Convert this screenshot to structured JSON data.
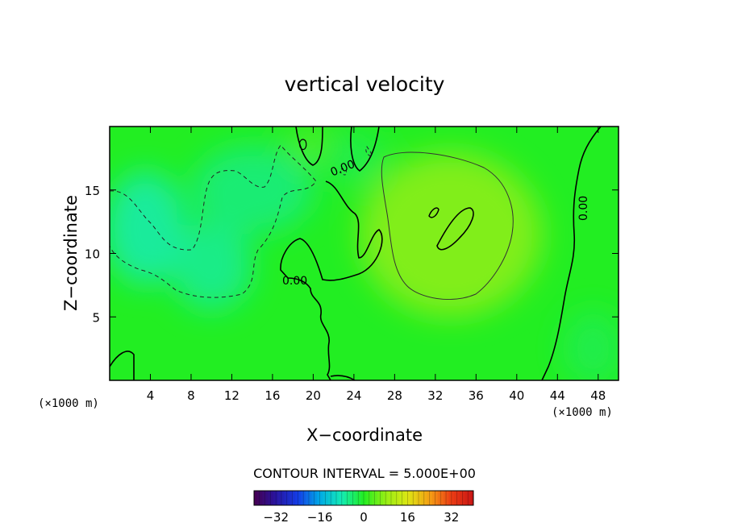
{
  "chart_data": {
    "type": "heatmap",
    "title": "vertical velocity",
    "xlabel": "X−coordinate",
    "ylabel": "Z−coordinate",
    "x_unit": "(×1000 m)",
    "y_unit": "(×1000 m)",
    "xlim": [
      0,
      50
    ],
    "ylim": [
      0,
      20
    ],
    "x_ticks": [
      4,
      8,
      12,
      16,
      20,
      24,
      28,
      32,
      36,
      40,
      44,
      48
    ],
    "y_ticks": [
      5,
      10,
      15
    ],
    "x_tick_labels": [
      "4",
      "8",
      "12",
      "16",
      "20",
      "24",
      "28",
      "32",
      "36",
      "40",
      "44",
      "48"
    ],
    "y_tick_labels": [
      "5",
      "10",
      "15"
    ],
    "contour_interval_text": "CONTOUR INTERVAL = 5.000E+00",
    "contour_labels": [
      "0.00",
      "0.00",
      "0.00"
    ],
    "colorbar": {
      "range": [
        -40,
        40
      ],
      "ticks": [
        -32,
        -16,
        0,
        16,
        32
      ],
      "tick_labels": [
        "−32",
        "−16",
        "0",
        "16",
        "32"
      ]
    },
    "colors": {
      "background_field": "#22ee22",
      "positive_max": "#99ee11",
      "negative_min": "#22eeaa",
      "zero_contour": "#000000"
    },
    "field_blobs": [
      {
        "x": 33.5,
        "y": 11.5,
        "rx": 9,
        "ry": 6.5,
        "value": 7
      },
      {
        "x": 20,
        "y": 18.5,
        "rx": 2.5,
        "ry": 1.5,
        "value": 3
      },
      {
        "x": 3.5,
        "y": 12,
        "rx": 4,
        "ry": 4.5,
        "value": -6
      },
      {
        "x": 10,
        "y": 9,
        "rx": 4,
        "ry": 3.5,
        "value": -5
      },
      {
        "x": 14,
        "y": 15,
        "rx": 6,
        "ry": 3.5,
        "value": -4
      },
      {
        "x": 24,
        "y": 17.5,
        "rx": 3,
        "ry": 2,
        "value": -2
      },
      {
        "x": 47.5,
        "y": 2.5,
        "rx": 3,
        "ry": 3,
        "value": -2
      }
    ]
  }
}
